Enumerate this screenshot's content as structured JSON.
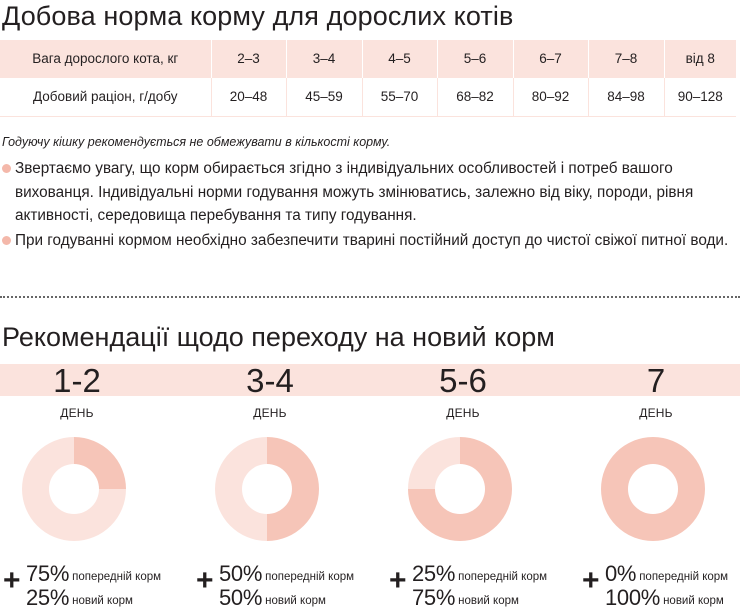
{
  "feeding": {
    "title": "Добова норма корму для дорослих котів",
    "weight_label": "Вага дорослого кота, кг",
    "ration_label": "Добовий раціон, г/добу",
    "weights": [
      "2–3",
      "3–4",
      "4–5",
      "5–6",
      "6–7",
      "7–8",
      "від 8"
    ],
    "rations": [
      "20–48",
      "45–59",
      "55–70",
      "68–82",
      "80–92",
      "84–98",
      "90–128"
    ],
    "note": "Годуючу кішку рекомендується не обмежувати в кількості корму.",
    "bullets": [
      "Звертаємо увагу, що корм обирається згідно з індивідуальних особливостей і потреб вашого вихованця. Індивідуальні норми годування можуть змінюватись, залежно від віку, породи, рівня активності, середовища перебування та типу годування.",
      "При годуванні кормом необхідно забезпечити тварині постійний доступ до чистої свіжої питної води."
    ]
  },
  "transition": {
    "title": "Рекомендації щодо переходу на новий корм",
    "stages": [
      {
        "days": "1-2",
        "unit": "ДЕНЬ",
        "old_pct": "75%",
        "old_label": "попередній корм",
        "new_pct": "25%",
        "new_label": "новий корм",
        "new_fraction": 0.25
      },
      {
        "days": "3-4",
        "unit": "ДЕНЬ",
        "old_pct": "50%",
        "old_label": "попередній корм",
        "new_pct": "50%",
        "new_label": "новий корм",
        "new_fraction": 0.5
      },
      {
        "days": "5-6",
        "unit": "ДЕНЬ",
        "old_pct": "25%",
        "old_label": "попередній корм",
        "new_pct": "75%",
        "new_label": "новий корм",
        "new_fraction": 0.75
      },
      {
        "days": "7",
        "unit": "ДЕНЬ",
        "old_pct": "0%",
        "old_label": "попередній корм",
        "new_pct": "100%",
        "new_label": "новий корм",
        "new_fraction": 1.0
      }
    ]
  },
  "colors": {
    "old_food": "#fbe3dd",
    "new_food": "#f6c5b8",
    "band": "#fbe3dd",
    "bullet": "#f4b8aa"
  }
}
